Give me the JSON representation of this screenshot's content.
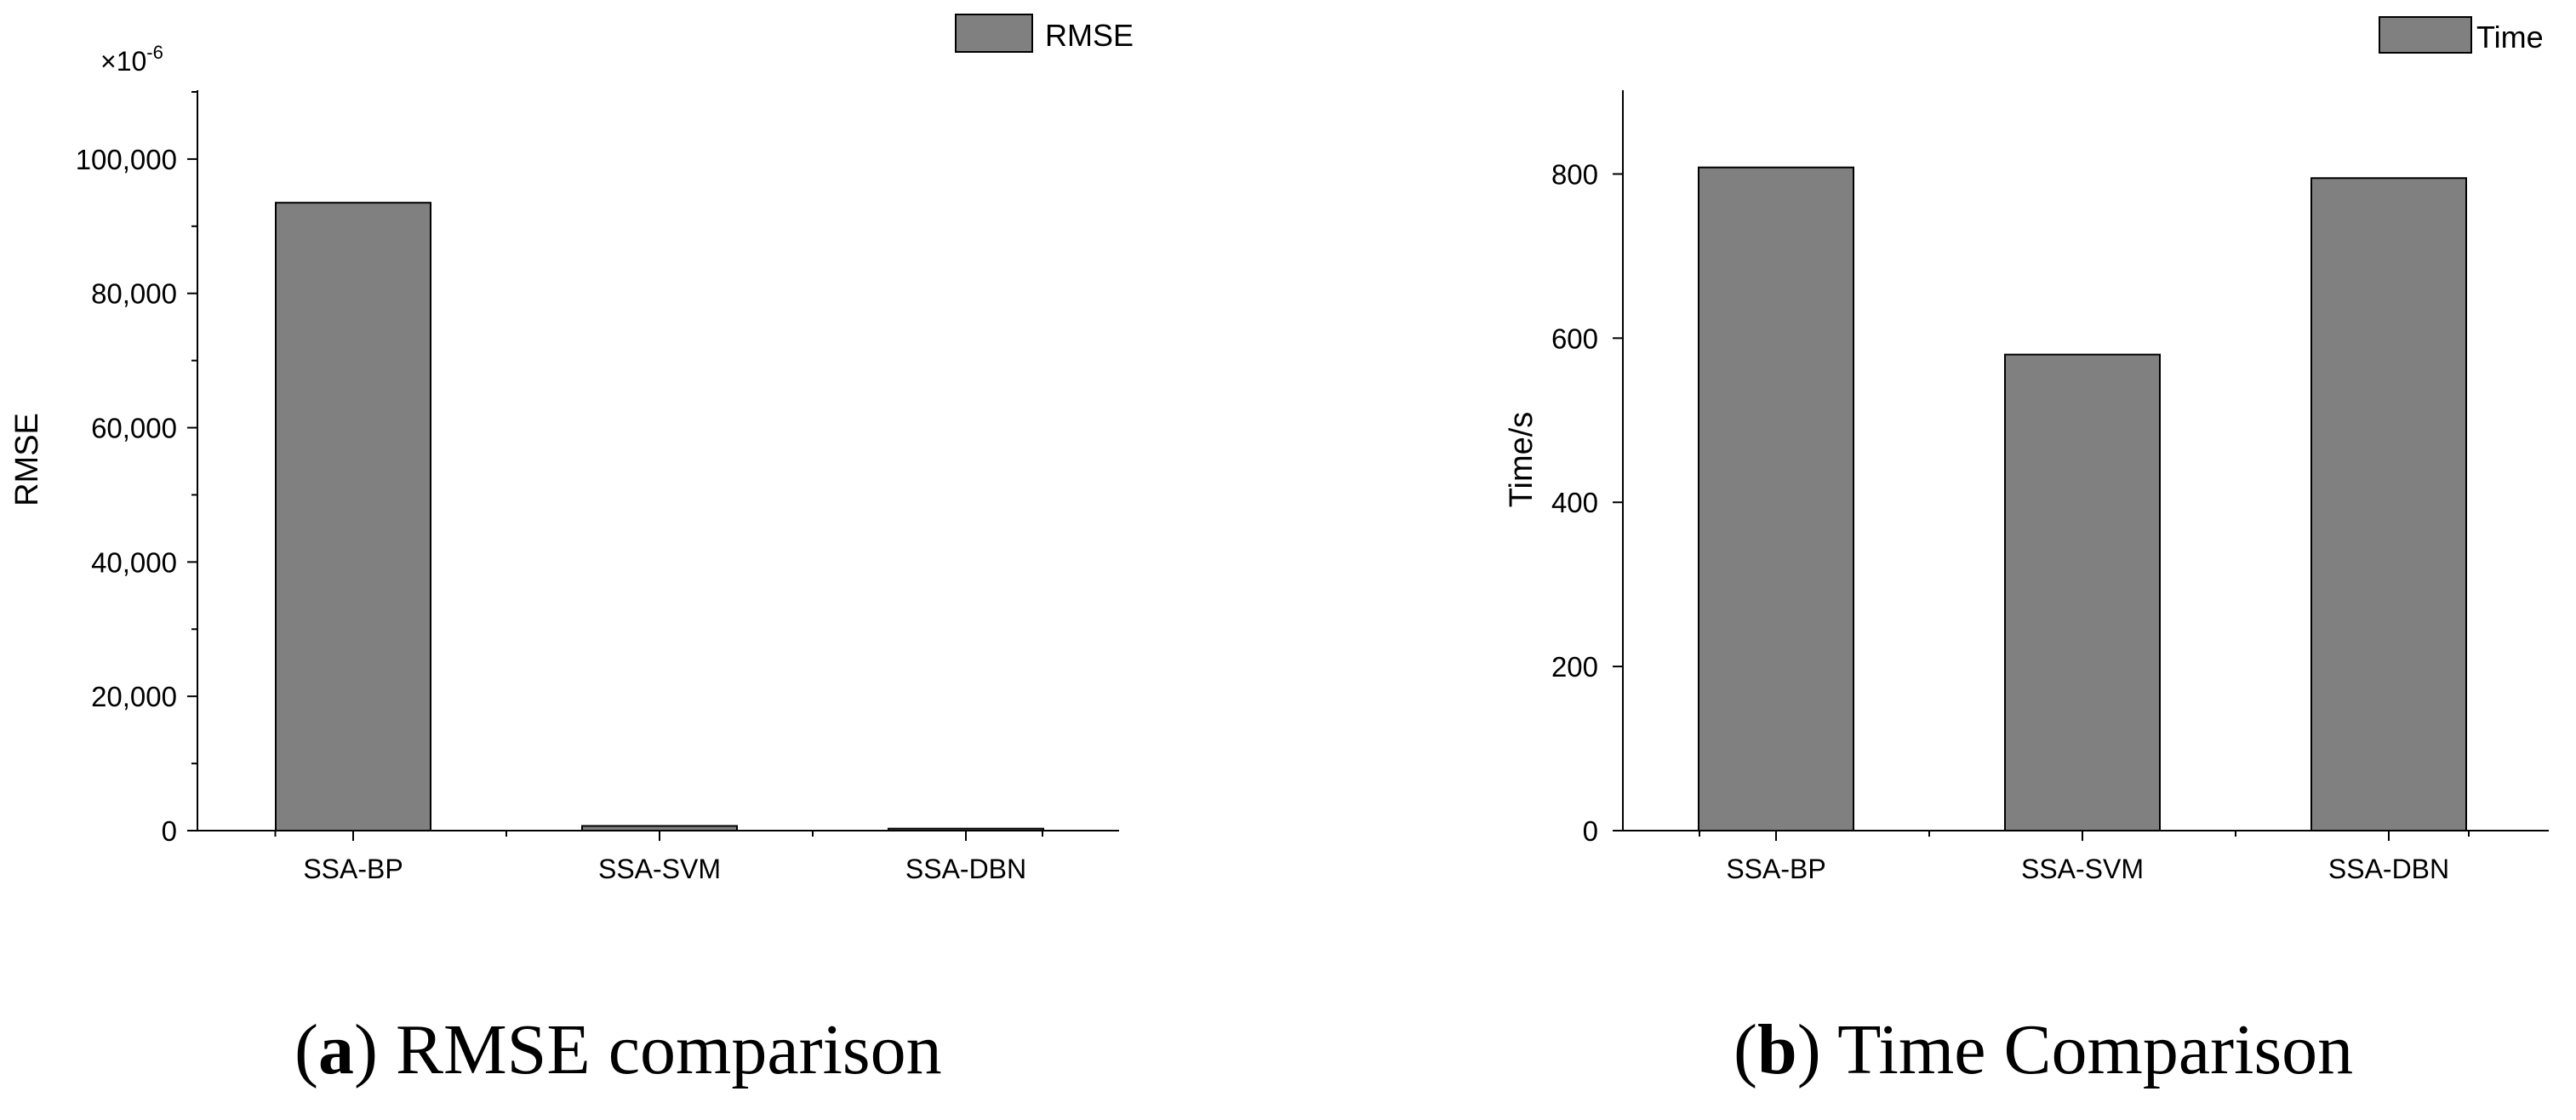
{
  "chart_data": [
    {
      "type": "bar",
      "panel_id": "a",
      "caption_rest": " RMSE comparison",
      "categories": [
        "SSA-BP",
        "SSA-SVM",
        "SSA-DBN"
      ],
      "tick_labels": [
        "SSA-BP",
        "SSA-SVM",
        "SSA-DBN"
      ],
      "series": [
        {
          "name": "RMSE",
          "values": [
            93500,
            700,
            300
          ]
        }
      ],
      "ylabel": "RMSE",
      "xlabel": "",
      "ylim": [
        0,
        110000
      ],
      "yticks": [
        0,
        20000,
        40000,
        60000,
        80000,
        100000
      ],
      "ytick_labels": [
        "0",
        "20,000",
        "40,000",
        "60,000",
        "80,000",
        "100,000"
      ],
      "scale_factor": "×10",
      "scale_exp": "-6",
      "legend_label": "RMSE",
      "legend_position": "top-right",
      "bar_color": "#808080",
      "grid": false
    },
    {
      "type": "bar",
      "panel_id": "b",
      "caption_rest": " Time Comparison",
      "categories": [
        "SSA-BP",
        "SSA-SVM",
        "SSA-DBN"
      ],
      "tick_labels": [
        "SSA-BP",
        "SSA-SVM",
        "SSA-DBN"
      ],
      "series": [
        {
          "name": "Time",
          "values": [
            808,
            580,
            795
          ]
        }
      ],
      "ylabel": "Time/s",
      "xlabel": "",
      "ylim": [
        0,
        900
      ],
      "yticks": [
        0,
        200,
        400,
        600,
        800
      ],
      "ytick_labels": [
        "0",
        "200",
        "400",
        "600",
        "800"
      ],
      "legend_label": "Time",
      "legend_position": "top-right",
      "bar_color": "#808080",
      "grid": false
    }
  ]
}
